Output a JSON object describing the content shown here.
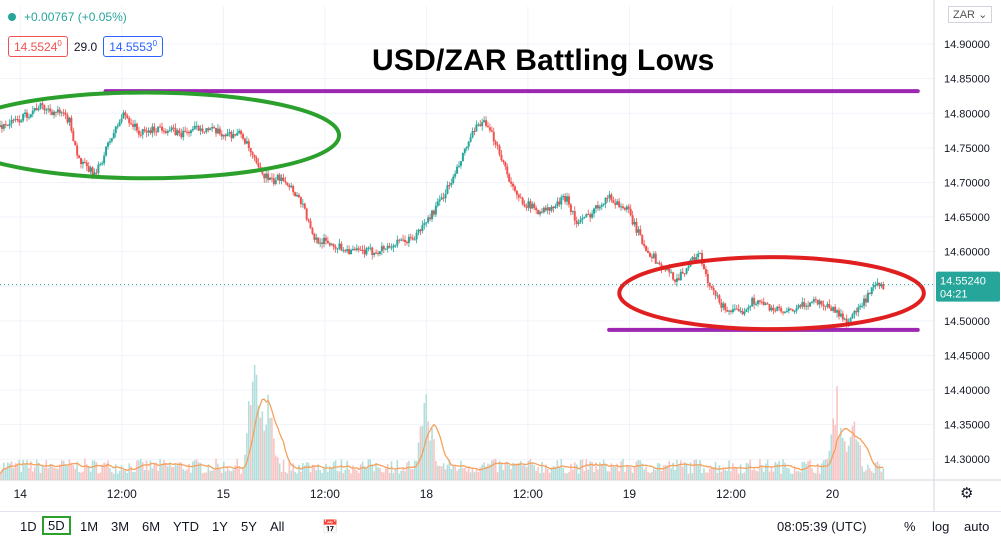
{
  "header": {
    "change": "+0.00767 (+0.05%)",
    "bid": "14.5524",
    "bid_sup": "0",
    "spread": "29.0",
    "ask": "14.5553",
    "ask_sup": "0",
    "symbol": "ZAR"
  },
  "colors": {
    "up": "#26a69a",
    "down": "#ef5350",
    "volume_ma": "#f5a15c",
    "support_resistance": "#9c27b0",
    "circle_left": "#2ca02c",
    "circle_right": "#e02020",
    "last_price_bg": "#26a69a"
  },
  "chart_data": {
    "type": "candlestick",
    "title": "USD/ZAR Battling Lows",
    "y_axis": {
      "ticks": [
        "14.90000",
        "14.85000",
        "14.80000",
        "14.75000",
        "14.70000",
        "14.65000",
        "14.60000",
        "14.55000",
        "14.50000",
        "14.45000",
        "14.40000",
        "14.35000",
        "14.30000"
      ],
      "tick_values": [
        14.9,
        14.85,
        14.8,
        14.75,
        14.7,
        14.65,
        14.6,
        14.55,
        14.5,
        14.45,
        14.4,
        14.35,
        14.3
      ],
      "range": [
        14.27,
        14.955
      ]
    },
    "x_axis": {
      "ticks": [
        "14",
        "12:00",
        "15",
        "12:00",
        "18",
        "12:00",
        "19",
        "12:00",
        "20"
      ],
      "tick_days": [
        0,
        0.5,
        1,
        1.5,
        2,
        2.5,
        3,
        3.5,
        4
      ],
      "range_days": [
        -0.1,
        4.5
      ]
    },
    "price_path": [
      [
        -0.1,
        14.78
      ],
      [
        0.0,
        14.79
      ],
      [
        0.1,
        14.81
      ],
      [
        0.2,
        14.8
      ],
      [
        0.25,
        14.79
      ],
      [
        0.3,
        14.73
      ],
      [
        0.38,
        14.71
      ],
      [
        0.45,
        14.76
      ],
      [
        0.52,
        14.8
      ],
      [
        0.6,
        14.77
      ],
      [
        0.7,
        14.78
      ],
      [
        0.8,
        14.77
      ],
      [
        0.9,
        14.78
      ],
      [
        1.0,
        14.77
      ],
      [
        1.1,
        14.77
      ],
      [
        1.18,
        14.72
      ],
      [
        1.25,
        14.7
      ],
      [
        1.3,
        14.71
      ],
      [
        1.4,
        14.67
      ],
      [
        1.45,
        14.62
      ],
      [
        1.55,
        14.61
      ],
      [
        1.65,
        14.6
      ],
      [
        1.75,
        14.6
      ],
      [
        1.85,
        14.61
      ],
      [
        1.95,
        14.62
      ],
      [
        2.05,
        14.66
      ],
      [
        2.15,
        14.71
      ],
      [
        2.22,
        14.76
      ],
      [
        2.28,
        14.79
      ],
      [
        2.35,
        14.76
      ],
      [
        2.45,
        14.68
      ],
      [
        2.55,
        14.66
      ],
      [
        2.62,
        14.66
      ],
      [
        2.7,
        14.68
      ],
      [
        2.75,
        14.64
      ],
      [
        2.8,
        14.65
      ],
      [
        2.9,
        14.68
      ],
      [
        3.0,
        14.66
      ],
      [
        3.08,
        14.61
      ],
      [
        3.16,
        14.58
      ],
      [
        3.24,
        14.56
      ],
      [
        3.3,
        14.58
      ],
      [
        3.35,
        14.6
      ],
      [
        3.4,
        14.55
      ],
      [
        3.47,
        14.52
      ],
      [
        3.55,
        14.51
      ],
      [
        3.62,
        14.53
      ],
      [
        3.7,
        14.52
      ],
      [
        3.78,
        14.51
      ],
      [
        3.85,
        14.52
      ],
      [
        3.92,
        14.53
      ],
      [
        4.0,
        14.52
      ],
      [
        4.08,
        14.5
      ],
      [
        4.15,
        14.52
      ],
      [
        4.22,
        14.55
      ],
      [
        4.26,
        14.55
      ]
    ],
    "volume_spikes": [
      [
        1.15,
        0.85
      ],
      [
        1.22,
        0.55
      ],
      [
        2.0,
        0.62
      ],
      [
        4.02,
        0.55
      ],
      [
        4.1,
        0.38
      ]
    ],
    "last_price": "14.55240",
    "countdown": "04:21",
    "levels": [
      {
        "name": "resistance",
        "value": 14.832,
        "from_day": 0.42,
        "to_day": 4.42
      },
      {
        "name": "support",
        "value": 14.487,
        "from_day": 2.9,
        "to_day": 4.42
      }
    ],
    "circles": [
      {
        "name": "left-highlight",
        "cx_day": 0.62,
        "cy_val": 14.768,
        "rx_days": 0.95,
        "ry_val": 0.062
      },
      {
        "name": "right-highlight",
        "cx_day": 3.7,
        "cy_val": 14.54,
        "rx_days": 0.75,
        "ry_val": 0.052
      }
    ]
  },
  "bottom": {
    "ranges": [
      "1D",
      "5D",
      "1M",
      "3M",
      "6M",
      "YTD",
      "1Y",
      "5Y",
      "All"
    ],
    "selected": "5D",
    "time": "08:05:39 (UTC)",
    "pct": "%",
    "log": "log",
    "auto": "auto"
  }
}
